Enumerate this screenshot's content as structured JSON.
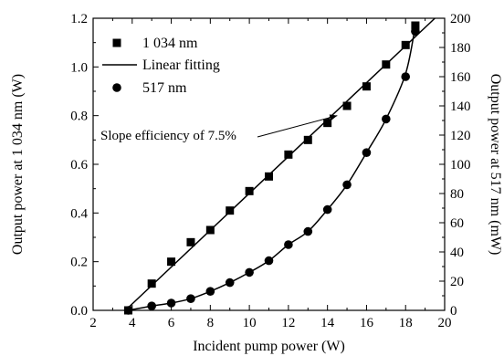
{
  "chart_data": {
    "type": "scatter",
    "xlabel": "Incident pump power (W)",
    "ylabel_left": "Output power at 1 034 nm (W)",
    "ylabel_right": "Output power at 517 nm (mW)",
    "xlim": [
      2,
      20
    ],
    "ylim_left": [
      0,
      1.2
    ],
    "ylim_right": [
      0,
      200
    ],
    "x_ticks": [
      "2",
      "4",
      "6",
      "8",
      "10",
      "12",
      "14",
      "16",
      "18",
      "20"
    ],
    "y_left_ticks": [
      "0.0",
      "0.2",
      "0.4",
      "0.6",
      "0.8",
      "1.0",
      "1.2"
    ],
    "y_right_ticks": [
      "0",
      "20",
      "40",
      "60",
      "80",
      "100",
      "120",
      "140",
      "160",
      "180",
      "200"
    ],
    "grid": false,
    "legend_position": "top-left",
    "series": [
      {
        "name": "1 034 nm",
        "marker": "square",
        "axis": "left",
        "x": [
          3.8,
          5,
          6,
          7,
          8,
          9,
          10,
          11,
          12,
          13,
          14,
          15,
          16,
          17,
          18,
          18.5
        ],
        "y": [
          0.0,
          0.11,
          0.2,
          0.28,
          0.33,
          0.41,
          0.49,
          0.55,
          0.64,
          0.7,
          0.77,
          0.84,
          0.92,
          1.01,
          1.09,
          1.17
        ]
      },
      {
        "name": "Linear fitting",
        "marker": "line",
        "axis": "left",
        "x": [
          3.65,
          19.5
        ],
        "y": [
          0.0,
          1.2
        ]
      },
      {
        "name": "517 nm",
        "marker": "circle",
        "axis": "right",
        "x": [
          3.8,
          5,
          6,
          7,
          8,
          9,
          10,
          11,
          12,
          13,
          14,
          15,
          16,
          17,
          18,
          18.5
        ],
        "y": [
          0,
          3,
          5,
          8,
          13,
          19,
          26,
          34,
          45,
          54,
          69,
          86,
          108,
          131,
          160,
          191
        ]
      }
    ],
    "fit_517": {
      "axis": "right",
      "x": [
        3.8,
        5,
        6,
        7,
        8,
        9,
        10,
        11,
        12,
        13,
        14,
        15,
        16,
        17,
        18,
        18.5
      ],
      "y": [
        0,
        3,
        5,
        8,
        13,
        19,
        26,
        34,
        45,
        54,
        69,
        86,
        108,
        131,
        162,
        195
      ]
    },
    "annotation": {
      "text": "Slope efficiency of 7.5%",
      "target_x": 14.5,
      "target_y": 0.8
    }
  }
}
